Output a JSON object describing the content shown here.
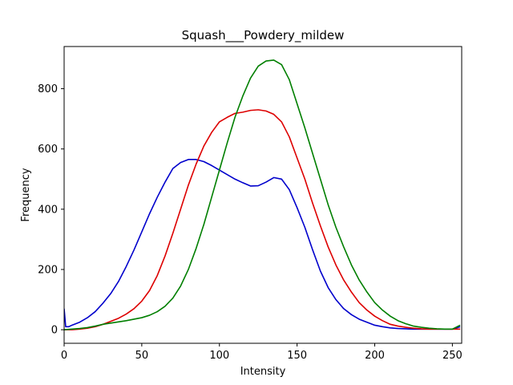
{
  "chart_data": {
    "type": "line",
    "title": "Squash___Powdery_mildew",
    "xlabel": "Intensity",
    "ylabel": "Frequency",
    "xlim": [
      0,
      256
    ],
    "ylim": [
      -45,
      940
    ],
    "xticks": [
      0,
      50,
      100,
      150,
      200,
      250
    ],
    "yticks": [
      0,
      200,
      400,
      600,
      800
    ],
    "grid": false,
    "legend": "none",
    "series": [
      {
        "color": "#0000cc",
        "x": [
          0,
          1,
          3,
          5,
          10,
          15,
          20,
          25,
          30,
          35,
          40,
          45,
          50,
          55,
          60,
          65,
          70,
          75,
          80,
          85,
          90,
          95,
          100,
          105,
          110,
          115,
          120,
          125,
          130,
          135,
          140,
          145,
          150,
          155,
          160,
          165,
          170,
          175,
          180,
          185,
          190,
          195,
          200,
          205,
          210,
          215,
          220,
          225,
          230,
          235,
          240,
          245,
          250,
          255
        ],
        "y": [
          70,
          10,
          10,
          15,
          25,
          40,
          60,
          88,
          120,
          160,
          210,
          265,
          325,
          385,
          440,
          490,
          535,
          555,
          565,
          565,
          558,
          545,
          530,
          515,
          500,
          488,
          477,
          478,
          490,
          505,
          500,
          465,
          405,
          340,
          265,
          195,
          140,
          100,
          70,
          50,
          35,
          25,
          15,
          10,
          6,
          4,
          3,
          2,
          2,
          2,
          2,
          2,
          2,
          10
        ]
      },
      {
        "color": "#dd0000",
        "x": [
          0,
          5,
          10,
          15,
          20,
          25,
          30,
          35,
          40,
          45,
          50,
          55,
          60,
          65,
          70,
          75,
          80,
          85,
          90,
          95,
          100,
          105,
          110,
          115,
          120,
          125,
          130,
          135,
          140,
          145,
          150,
          155,
          160,
          165,
          170,
          175,
          180,
          185,
          190,
          195,
          200,
          205,
          210,
          215,
          220,
          225,
          230,
          235,
          240,
          245,
          250,
          255
        ],
        "y": [
          0,
          0,
          2,
          5,
          10,
          18,
          28,
          38,
          52,
          70,
          95,
          130,
          180,
          245,
          320,
          400,
          480,
          550,
          610,
          655,
          690,
          705,
          718,
          722,
          728,
          730,
          726,
          715,
          690,
          640,
          570,
          500,
          420,
          345,
          275,
          215,
          165,
          125,
          90,
          65,
          45,
          30,
          18,
          12,
          8,
          5,
          3,
          2,
          2,
          2,
          2,
          2
        ]
      },
      {
        "color": "#007f00",
        "x": [
          0,
          5,
          10,
          15,
          20,
          25,
          30,
          35,
          40,
          45,
          50,
          55,
          60,
          65,
          70,
          75,
          80,
          85,
          90,
          95,
          100,
          105,
          110,
          115,
          120,
          125,
          130,
          135,
          140,
          145,
          150,
          155,
          160,
          165,
          170,
          175,
          180,
          185,
          190,
          195,
          200,
          205,
          210,
          215,
          220,
          225,
          230,
          235,
          240,
          245,
          250,
          255
        ],
        "y": [
          0,
          2,
          4,
          7,
          12,
          18,
          22,
          26,
          30,
          35,
          40,
          48,
          60,
          78,
          105,
          145,
          200,
          270,
          350,
          440,
          530,
          620,
          705,
          775,
          835,
          875,
          892,
          895,
          880,
          830,
          750,
          670,
          585,
          500,
          415,
          340,
          275,
          215,
          165,
          125,
          90,
          65,
          45,
          30,
          20,
          12,
          8,
          5,
          3,
          2,
          2,
          15
        ]
      }
    ]
  }
}
